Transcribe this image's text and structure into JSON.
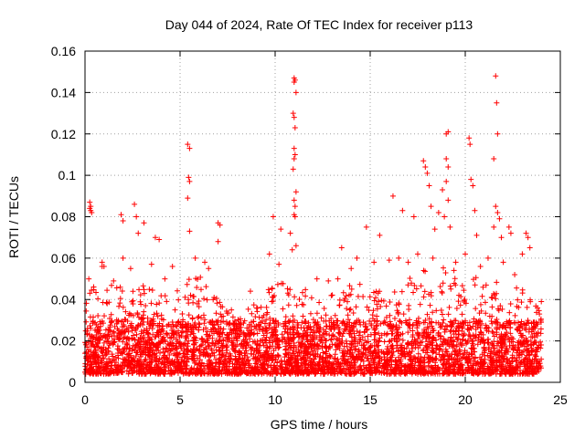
{
  "chart_data": {
    "type": "scatter",
    "title": "Day 044 of 2024, Rate Of TEC Index for receiver p113",
    "xlabel": "GPS time / hours",
    "ylabel": "ROTI / TECUs",
    "xlim": [
      0,
      25
    ],
    "ylim": [
      0,
      0.16
    ],
    "xticks": [
      0,
      5,
      10,
      15,
      20,
      25
    ],
    "xtick_labels": [
      "0",
      "5",
      "10",
      "15",
      "20",
      "25"
    ],
    "yticks": [
      0,
      0.02,
      0.04,
      0.06,
      0.08,
      0.1,
      0.12,
      0.14,
      0.16
    ],
    "ytick_labels": [
      "0",
      "0.02",
      "0.04",
      "0.06",
      "0.08",
      "0.1",
      "0.12",
      "0.14",
      "0.16"
    ],
    "grid": true,
    "marker": "+",
    "color": "#ff0000",
    "series": [
      {
        "name": "ROTI",
        "points": [
          [
            0.25,
            0.087
          ],
          [
            0.25,
            0.084
          ],
          [
            0.3,
            0.083
          ],
          [
            0.3,
            0.085
          ],
          [
            0.35,
            0.082
          ],
          [
            0.9,
            0.058
          ],
          [
            0.9,
            0.056
          ],
          [
            1.9,
            0.081
          ],
          [
            2.0,
            0.078
          ],
          [
            2.6,
            0.086
          ],
          [
            2.7,
            0.08
          ],
          [
            2.8,
            0.072
          ],
          [
            3.1,
            0.077
          ],
          [
            3.7,
            0.07
          ],
          [
            3.9,
            0.069
          ],
          [
            5.4,
            0.115
          ],
          [
            5.5,
            0.113
          ],
          [
            5.45,
            0.099
          ],
          [
            5.5,
            0.097
          ],
          [
            5.4,
            0.089
          ],
          [
            5.5,
            0.073
          ],
          [
            7.0,
            0.077
          ],
          [
            7.1,
            0.076
          ],
          [
            7.0,
            0.068
          ],
          [
            9.9,
            0.08
          ],
          [
            10.3,
            0.074
          ],
          [
            10.8,
            0.072
          ],
          [
            11.0,
            0.147
          ],
          [
            11.05,
            0.146
          ],
          [
            11.0,
            0.145
          ],
          [
            11.1,
            0.14
          ],
          [
            10.95,
            0.13
          ],
          [
            11.0,
            0.128
          ],
          [
            11.05,
            0.123
          ],
          [
            11.0,
            0.113
          ],
          [
            11.05,
            0.11
          ],
          [
            11.0,
            0.108
          ],
          [
            10.95,
            0.103
          ],
          [
            11.1,
            0.092
          ],
          [
            11.0,
            0.088
          ],
          [
            11.05,
            0.085
          ],
          [
            11.0,
            0.081
          ],
          [
            11.05,
            0.08
          ],
          [
            11.1,
            0.066
          ],
          [
            10.9,
            0.064
          ],
          [
            13.5,
            0.065
          ],
          [
            14.8,
            0.075
          ],
          [
            15.5,
            0.071
          ],
          [
            16.2,
            0.09
          ],
          [
            16.7,
            0.083
          ],
          [
            17.3,
            0.08
          ],
          [
            17.8,
            0.107
          ],
          [
            17.9,
            0.104
          ],
          [
            18.0,
            0.101
          ],
          [
            18.1,
            0.095
          ],
          [
            18.2,
            0.085
          ],
          [
            18.4,
            0.074
          ],
          [
            18.6,
            0.082
          ],
          [
            18.8,
            0.093
          ],
          [
            19.0,
            0.12
          ],
          [
            19.1,
            0.121
          ],
          [
            19.0,
            0.108
          ],
          [
            19.1,
            0.104
          ],
          [
            19.0,
            0.097
          ],
          [
            19.1,
            0.088
          ],
          [
            18.9,
            0.08
          ],
          [
            19.2,
            0.075
          ],
          [
            20.2,
            0.118
          ],
          [
            20.25,
            0.115
          ],
          [
            20.3,
            0.098
          ],
          [
            20.4,
            0.095
          ],
          [
            20.5,
            0.083
          ],
          [
            20.6,
            0.071
          ],
          [
            21.5,
            0.108
          ],
          [
            21.6,
            0.148
          ],
          [
            21.65,
            0.135
          ],
          [
            21.7,
            0.12
          ],
          [
            21.6,
            0.085
          ],
          [
            21.7,
            0.082
          ],
          [
            21.8,
            0.079
          ],
          [
            21.5,
            0.075
          ],
          [
            21.9,
            0.07
          ],
          [
            22.3,
            0.075
          ],
          [
            22.4,
            0.072
          ],
          [
            23.2,
            0.072
          ],
          [
            23.3,
            0.07
          ],
          [
            23.4,
            0.065
          ],
          [
            0.2,
            0.05
          ],
          [
            1.0,
            0.056
          ],
          [
            2.0,
            0.06
          ],
          [
            2.4,
            0.055
          ],
          [
            3.5,
            0.057
          ],
          [
            4.2,
            0.05
          ],
          [
            4.6,
            0.056
          ],
          [
            5.8,
            0.06
          ],
          [
            6.3,
            0.058
          ],
          [
            6.5,
            0.055
          ],
          [
            7.7,
            0.035
          ],
          [
            8.7,
            0.044
          ],
          [
            9.7,
            0.062
          ],
          [
            10.2,
            0.057
          ],
          [
            12.2,
            0.05
          ],
          [
            12.8,
            0.049
          ],
          [
            13.3,
            0.05
          ],
          [
            14.0,
            0.055
          ],
          [
            14.3,
            0.06
          ],
          [
            15.2,
            0.058
          ],
          [
            16.0,
            0.059
          ],
          [
            16.5,
            0.06
          ],
          [
            17.0,
            0.058
          ],
          [
            17.5,
            0.062
          ],
          [
            18.3,
            0.06
          ],
          [
            19.5,
            0.058
          ],
          [
            20.0,
            0.062
          ],
          [
            20.8,
            0.056
          ],
          [
            21.2,
            0.06
          ],
          [
            22.0,
            0.058
          ],
          [
            22.6,
            0.052
          ],
          [
            23.0,
            0.062
          ],
          [
            23.8,
            0.036
          ],
          [
            24.0,
            0.039
          ],
          [
            23.9,
            0.033
          ]
        ]
      }
    ],
    "dense_band": {
      "note": "Dense cluster of crosses spanning the full day between the floor and an envelope level",
      "floor": 0.004,
      "envelope_hours": [
        0,
        1,
        2,
        3,
        4,
        5,
        6,
        7,
        8,
        9,
        10,
        11,
        12,
        13,
        14,
        15,
        16,
        17,
        18,
        19,
        20,
        21,
        22,
        23,
        24
      ],
      "envelope_values": [
        0.045,
        0.048,
        0.05,
        0.048,
        0.044,
        0.05,
        0.052,
        0.04,
        0.03,
        0.04,
        0.05,
        0.052,
        0.04,
        0.045,
        0.05,
        0.045,
        0.044,
        0.05,
        0.055,
        0.058,
        0.05,
        0.052,
        0.048,
        0.045,
        0.035
      ],
      "core_top": 0.03,
      "count": 4200,
      "seed": 44
    }
  }
}
